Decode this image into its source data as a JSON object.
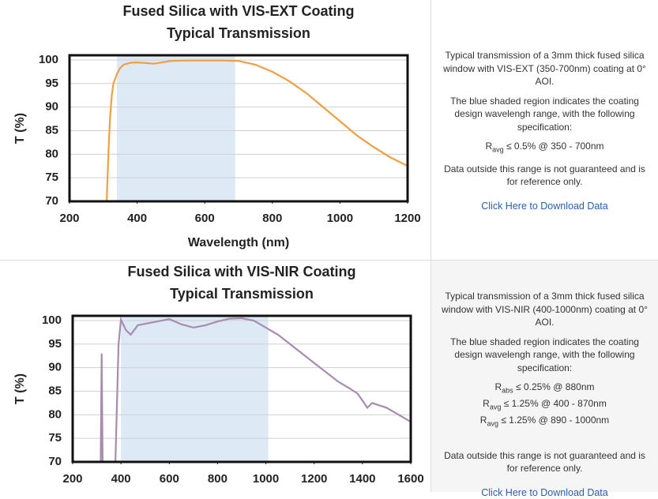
{
  "chart_data": [
    {
      "type": "line",
      "title": "Fused Silica with VIS-EXT Coating",
      "subtitle": "Typical Transmission",
      "xlabel": "Wavelength (nm)",
      "ylabel": "T (%)",
      "xlim": [
        200,
        1200
      ],
      "xticks": [
        200,
        400,
        600,
        800,
        1000,
        1200
      ],
      "ylim": [
        70,
        101
      ],
      "yticks": [
        70,
        75,
        80,
        85,
        90,
        95,
        100
      ],
      "grid": true,
      "shaded_region": [
        340,
        690
      ],
      "shade_color": "#dde9f5",
      "color": "#f0a040",
      "x": [
        310,
        315,
        320,
        325,
        330,
        340,
        350,
        360,
        380,
        400,
        450,
        500,
        550,
        600,
        650,
        700,
        750,
        800,
        850,
        900,
        950,
        1000,
        1050,
        1100,
        1150,
        1200
      ],
      "values": [
        70,
        80,
        88,
        92.5,
        95,
        97,
        98.3,
        99,
        99.4,
        99.5,
        99.2,
        99.8,
        99.9,
        99.9,
        99.9,
        99.8,
        99,
        97.5,
        95.5,
        93,
        90,
        87,
        84,
        81.5,
        79.3,
        77.5
      ]
    },
    {
      "type": "line",
      "title": "Fused Silica with VIS-NIR Coating",
      "subtitle": "Typical Transmission",
      "ylabel": "T (%)",
      "xlim": [
        200,
        1600
      ],
      "xticks": [
        200,
        400,
        600,
        800,
        1000,
        1200,
        1400,
        1600
      ],
      "ylim": [
        70,
        101
      ],
      "yticks": [
        70,
        75,
        80,
        85,
        90,
        95,
        100
      ],
      "grid": true,
      "shaded_region": [
        400,
        1010
      ],
      "shade_color": "#dde9f5",
      "color": "#a88cb0",
      "x": [
        316,
        320,
        324,
        350,
        377,
        390,
        400,
        420,
        440,
        470,
        500,
        550,
        600,
        650,
        700,
        750,
        800,
        850,
        900,
        950,
        1000,
        1050,
        1100,
        1150,
        1200,
        1250,
        1300,
        1350,
        1380,
        1400,
        1420,
        1440,
        1500,
        1550,
        1600
      ],
      "values": [
        70,
        93,
        70,
        null,
        70,
        95,
        100.2,
        98,
        97,
        99,
        99.3,
        99.8,
        100.3,
        99.2,
        98.5,
        99,
        99.8,
        100.4,
        100.5,
        100,
        98.5,
        97,
        95,
        93,
        91,
        89,
        87,
        85.5,
        84.5,
        83,
        81.5,
        82.5,
        81.5,
        80,
        78.5
      ]
    }
  ],
  "panels": [
    {
      "description": "Typical transmission of a 3mm thick fused silica window with VIS-EXT (350-700nm) coating at 0° AOI.",
      "shading_note": "The blue shaded region indicates the coating design wavelengh range, with the following specification:",
      "specs": [
        {
          "symbol": "R",
          "subscript": "avg",
          "text": "≤ 0.5% @ 350 - 700nm"
        }
      ],
      "disclaimer": "Data outside this range is not guaranteed and is for reference only.",
      "link": "Click Here to Download Data"
    },
    {
      "description": "Typical transmission of a 3mm thick fused silica window with VIS-NIR (400-1000nm) coating at 0° AOI.",
      "shading_note": "The blue shaded region indicates the coating design wavelengh range, with the following specification:",
      "specs": [
        {
          "symbol": "R",
          "subscript": "abs",
          "text": "≤ 0.25% @ 880nm"
        },
        {
          "symbol": "R",
          "subscript": "avg",
          "text": "≤ 1.25% @ 400 - 870nm"
        },
        {
          "symbol": "R",
          "subscript": "avg",
          "text": "≤ 1.25% @ 890 - 1000nm"
        }
      ],
      "disclaimer": "Data outside this range is not guaranteed and is for reference only.",
      "link": "Click Here to Download Data"
    }
  ]
}
